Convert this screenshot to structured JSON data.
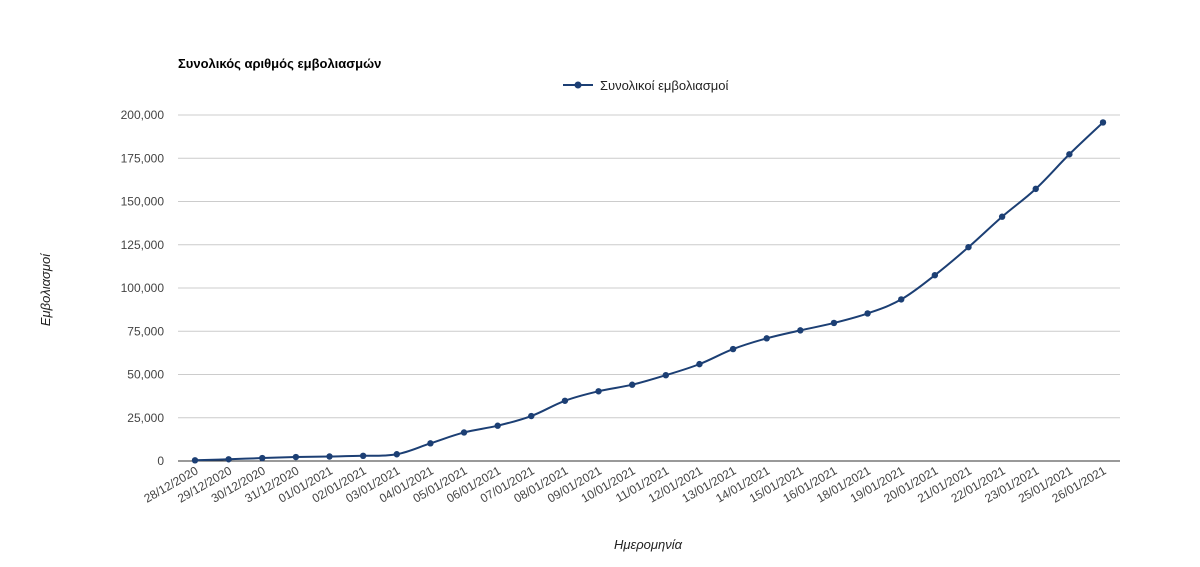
{
  "chart_data": {
    "type": "line",
    "title": "Συνολικός αριθμός εμβολιασμών",
    "xlabel": "Ημερομηνία",
    "ylabel": "Εμβολιασμοί",
    "ylim": [
      0,
      200000
    ],
    "yticks": [
      0,
      25000,
      50000,
      75000,
      100000,
      125000,
      150000,
      175000,
      200000
    ],
    "ytick_labels": [
      "0",
      "25,000",
      "50,000",
      "75,000",
      "100,000",
      "125,000",
      "150,000",
      "175,000",
      "200,000"
    ],
    "grid": true,
    "legend_position": "top-center",
    "categories": [
      "28/12/2020",
      "29/12/2020",
      "30/12/2020",
      "31/12/2020",
      "01/01/2021",
      "02/01/2021",
      "03/01/2021",
      "04/01/2021",
      "05/01/2021",
      "06/01/2021",
      "07/01/2021",
      "08/01/2021",
      "09/01/2021",
      "10/01/2021",
      "11/01/2021",
      "12/01/2021",
      "13/01/2021",
      "14/01/2021",
      "15/01/2021",
      "16/01/2021",
      "18/01/2021",
      "19/01/2021",
      "20/01/2021",
      "21/01/2021",
      "22/01/2021",
      "23/01/2021",
      "25/01/2021",
      "26/01/2021"
    ],
    "series": [
      {
        "name": "Συνολικοί εμβολιασμοί",
        "color": "#1c3f74",
        "values": [
          400,
          1000,
          1700,
          2300,
          2600,
          3000,
          3900,
          10200,
          16500,
          20400,
          26000,
          34800,
          40300,
          44100,
          49600,
          56000,
          64700,
          70900,
          75500,
          79800,
          85300,
          93400,
          107400,
          123600,
          141200,
          157300,
          177300,
          195700
        ]
      }
    ]
  }
}
